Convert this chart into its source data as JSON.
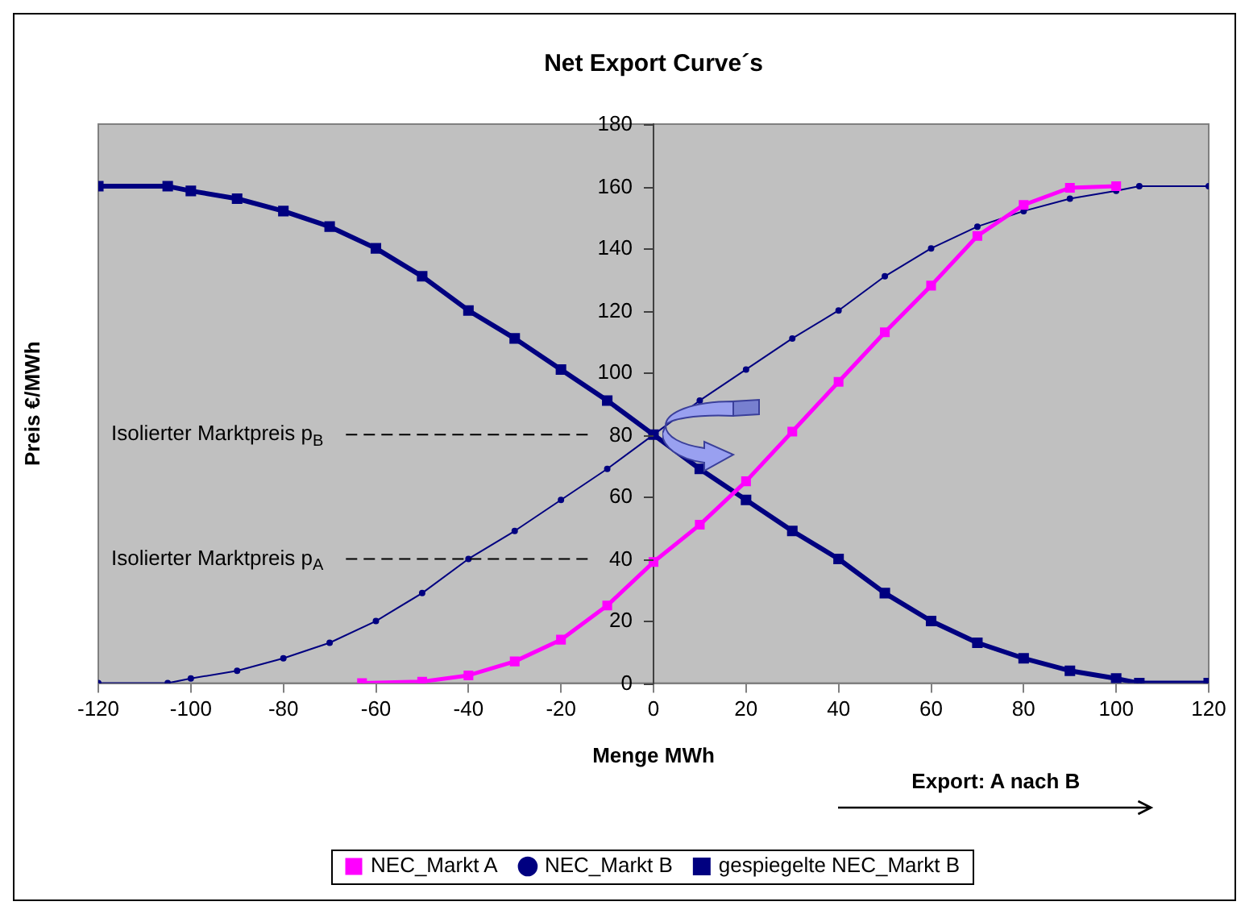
{
  "chart_data": {
    "type": "line",
    "title": "Net Export Curve´s",
    "xlabel": "Menge MWh",
    "ylabel": "Preis €/MWh",
    "xlim": [
      -120,
      120
    ],
    "xticks": [
      -120,
      -100,
      -80,
      -60,
      -40,
      -20,
      0,
      20,
      40,
      60,
      80,
      100,
      120
    ],
    "ylim": [
      0,
      180
    ],
    "yticks": [
      0,
      20,
      40,
      60,
      80,
      100,
      120,
      140,
      160,
      180
    ],
    "grid": false,
    "legend": "bottom",
    "series": [
      {
        "name": "NEC_Markt A",
        "color": "#ff00ff",
        "marker": "square",
        "x": [
          -63,
          -50,
          -40,
          -30,
          -20,
          -10,
          0,
          10,
          20,
          30,
          40,
          50,
          60,
          70,
          80,
          90,
          100
        ],
        "values": [
          0,
          0.5,
          2.5,
          7,
          14,
          25,
          39,
          51,
          65,
          81,
          97,
          113,
          128,
          144,
          154,
          159.5,
          160
        ]
      },
      {
        "name": "NEC_Markt B",
        "color": "#000080",
        "marker": "circle",
        "x": [
          -120,
          -105,
          -100,
          -90,
          -80,
          -70,
          -60,
          -50,
          -40,
          -30,
          -20,
          -10,
          0,
          10,
          20,
          30,
          40,
          50,
          60,
          70,
          80,
          90,
          100,
          105,
          120
        ],
        "values": [
          0,
          0,
          1.5,
          4,
          8,
          13,
          20,
          29,
          40,
          49,
          59,
          69,
          80,
          91,
          101,
          111,
          120,
          131,
          140,
          147,
          152,
          156,
          158.5,
          160,
          160
        ]
      },
      {
        "name": "gespiegelte NEC_Markt B",
        "color": "#000080",
        "marker": "square",
        "x": [
          -120,
          -105,
          -100,
          -90,
          -80,
          -70,
          -60,
          -50,
          -40,
          -30,
          -20,
          -10,
          0,
          10,
          20,
          30,
          40,
          50,
          60,
          70,
          80,
          90,
          100,
          105,
          120
        ],
        "values": [
          160,
          160,
          158.5,
          156,
          152,
          147,
          140,
          131,
          120,
          111,
          101,
          91,
          80,
          69,
          59,
          49,
          40,
          29,
          20,
          13,
          8,
          4,
          1.5,
          0,
          0
        ]
      }
    ],
    "annotations": [
      "Export: A nach B"
    ],
    "ref_lines": [
      {
        "axis": "y",
        "value": 80,
        "label": "Isolierter Marktpreis p$_{B}$",
        "color": "#000000",
        "line_style": "dashed"
      },
      {
        "axis": "y",
        "value": 40,
        "label": "Isolierter Marktpreis p$_{A}$",
        "color": "#000000",
        "line_style": "dashed"
      }
    ]
  }
}
